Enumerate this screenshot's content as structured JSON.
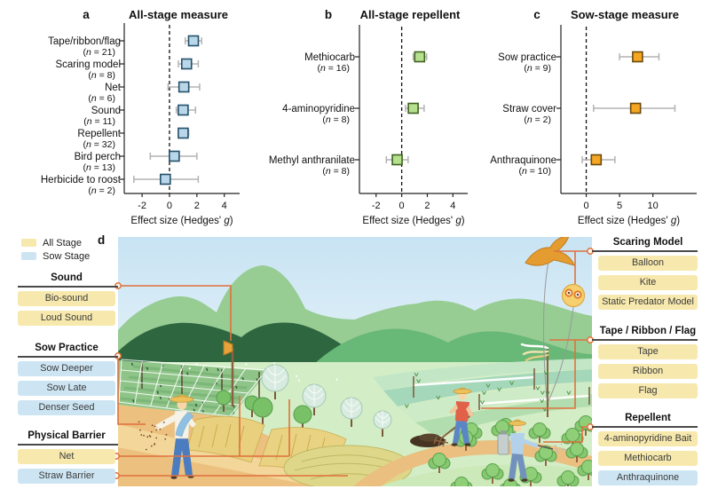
{
  "chart_data": [
    {
      "type": "forest",
      "panel_letter": "a",
      "title": "All-stage measure",
      "xlabel": "Effect size (Hedges' g)",
      "xticks": [
        -2,
        0,
        2,
        4
      ],
      "xlim": [
        -3.3,
        4.6
      ],
      "zero_line": 0,
      "marker_fill": "#b9d7e8",
      "marker_stroke": "#24506b",
      "error_color": "#b3b3b3",
      "items": [
        {
          "label": "Tape/ribbon/flag",
          "n": 21,
          "value": 1.75,
          "ci": [
            1.15,
            2.35
          ]
        },
        {
          "label": "Scaring model",
          "n": 8,
          "value": 1.25,
          "ci": [
            0.65,
            2.1
          ]
        },
        {
          "label": "Net",
          "n": 6,
          "value": 1.05,
          "ci": [
            -0.1,
            2.2
          ]
        },
        {
          "label": "Sound",
          "n": 11,
          "value": 1.0,
          "ci": [
            0.5,
            1.9
          ]
        },
        {
          "label": "Repellent",
          "n": 32,
          "value": 1.0,
          "ci": [
            0.65,
            1.4
          ]
        },
        {
          "label": "Bird perch",
          "n": 13,
          "value": 0.35,
          "ci": [
            -1.4,
            2.0
          ]
        },
        {
          "label": "Herbicide to roost",
          "n": 2,
          "value": -0.3,
          "ci": [
            -2.6,
            2.1
          ]
        }
      ]
    },
    {
      "type": "forest",
      "panel_letter": "b",
      "title": "All-stage repellent",
      "xlabel": "Effect size (Hedges' g)",
      "xticks": [
        -2,
        0,
        2,
        4
      ],
      "xlim": [
        -3.3,
        4.6
      ],
      "zero_line": 0,
      "marker_fill": "#b5e08e",
      "marker_stroke": "#3f6220",
      "error_color": "#b3b3b3",
      "items": [
        {
          "label": "Methiocarb",
          "n": 16,
          "value": 1.4,
          "ci": [
            0.9,
            1.95
          ]
        },
        {
          "label": "4-aminopyridine",
          "n": 8,
          "value": 0.9,
          "ci": [
            0.3,
            1.75
          ]
        },
        {
          "label": "Methyl anthranilate",
          "n": 8,
          "value": -0.35,
          "ci": [
            -1.2,
            0.5
          ]
        }
      ]
    },
    {
      "type": "forest",
      "panel_letter": "c",
      "title": "Sow-stage measure",
      "xlabel": "Effect size (Hedges' g)",
      "xticks": [
        0,
        5,
        10
      ],
      "xlim": [
        -3.8,
        15.5
      ],
      "zero_line": 0,
      "marker_fill": "#f5a623",
      "marker_stroke": "#6b4a0a",
      "error_color": "#b3b3b3",
      "items": [
        {
          "label": "Sow practice",
          "n": 9,
          "value": 7.7,
          "ci": [
            5.0,
            10.9
          ]
        },
        {
          "label": "Straw cover",
          "n": 2,
          "value": 7.4,
          "ci": [
            1.1,
            13.3
          ]
        },
        {
          "label": "Anthraquinone",
          "n": 10,
          "value": 1.5,
          "ci": [
            -0.6,
            4.3
          ]
        }
      ]
    }
  ],
  "panel_d": {
    "letter": "d",
    "legend": [
      {
        "label": "All Stage",
        "stage": "all"
      },
      {
        "label": "Sow Stage",
        "stage": "sow"
      }
    ],
    "stage_colors": {
      "all": "#f7e9ad",
      "sow": "#cde5f3"
    },
    "connector_color": "#e0713c",
    "left_groups": [
      {
        "title": "Sound",
        "items": [
          {
            "label": "Bio-sound",
            "stage": "all"
          },
          {
            "label": "Loud Sound",
            "stage": "all"
          }
        ]
      },
      {
        "title": "Sow Practice",
        "items": [
          {
            "label": "Sow Deeper",
            "stage": "sow"
          },
          {
            "label": "Sow Late",
            "stage": "sow"
          },
          {
            "label": "Denser Seed",
            "stage": "sow"
          }
        ]
      },
      {
        "title": "Physical Barrier",
        "items": [
          {
            "label": "Net",
            "stage": "all"
          },
          {
            "label": "Straw Barrier",
            "stage": "sow"
          }
        ]
      }
    ],
    "right_groups": [
      {
        "title": "Scaring Model",
        "items": [
          {
            "label": "Balloon",
            "stage": "all"
          },
          {
            "label": "Kite",
            "stage": "all"
          },
          {
            "label": "Static Predator Model",
            "stage": "all"
          }
        ]
      },
      {
        "title": "Tape / Ribbon / Flag",
        "items": [
          {
            "label": "Tape",
            "stage": "all"
          },
          {
            "label": "Ribbon",
            "stage": "all"
          },
          {
            "label": "Flag",
            "stage": "all"
          }
        ]
      },
      {
        "title": "Repellent",
        "items": [
          {
            "label": "4-aminopyridine Bait",
            "stage": "all"
          },
          {
            "label": "Methiocarb",
            "stage": "all"
          },
          {
            "label": "Anthraquinone",
            "stage": "sow"
          }
        ]
      }
    ]
  }
}
